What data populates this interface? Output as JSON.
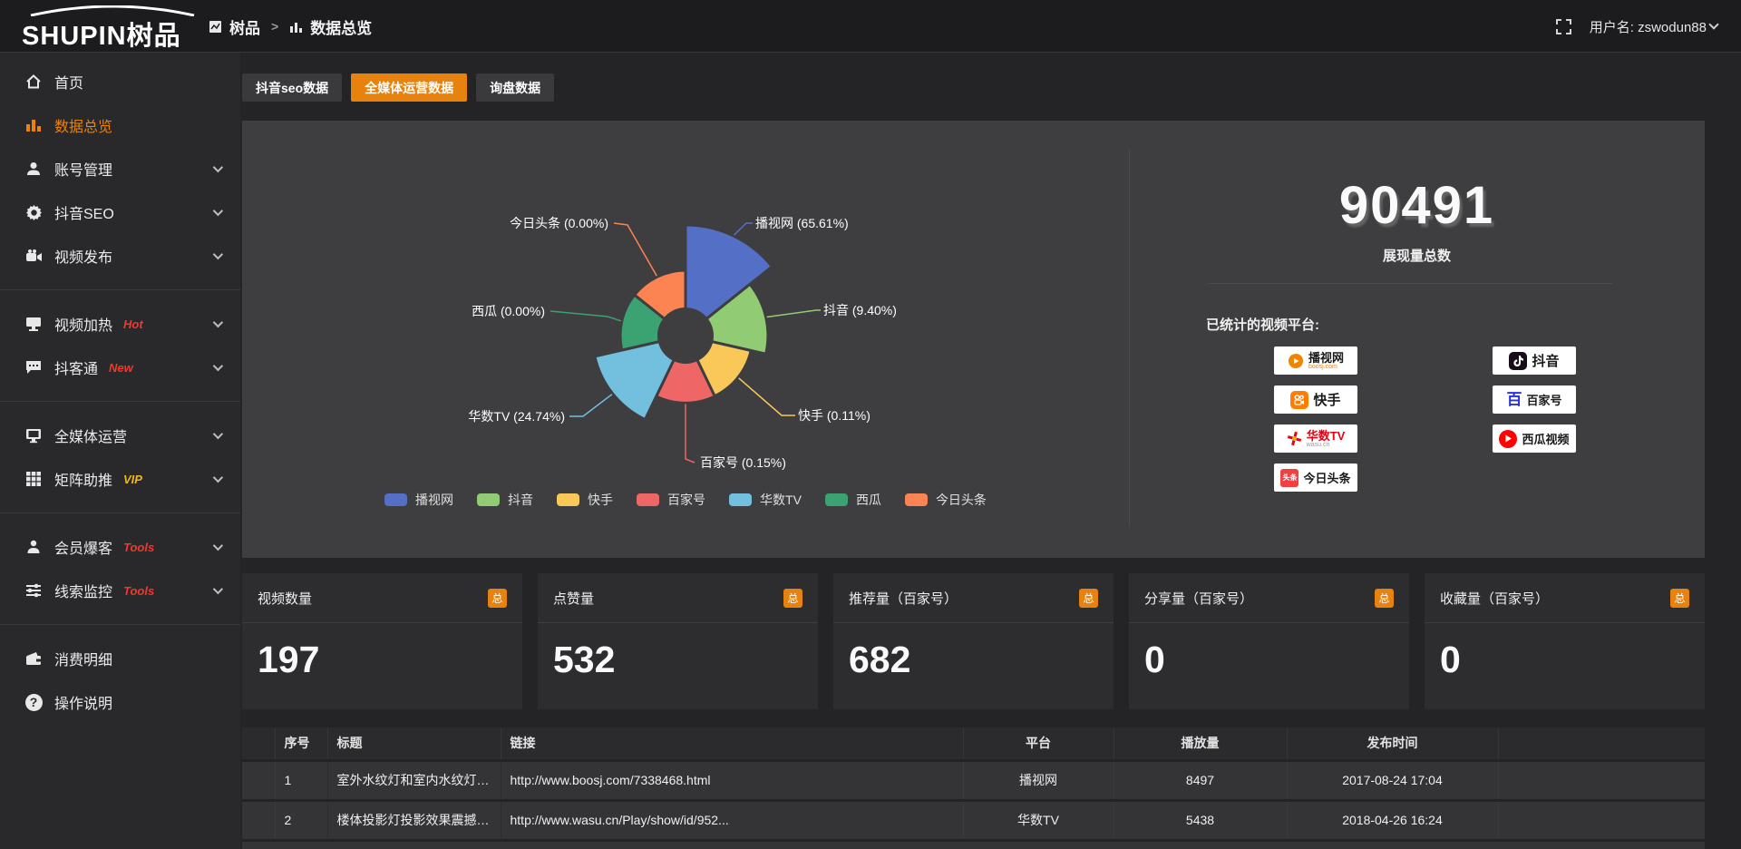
{
  "colors": {
    "accent_orange": "#e8820e",
    "link_orange": "#e8830c",
    "badge_red": "#f0392f",
    "badge_gold": "#f0b41e",
    "card_bg": "#3e3e40"
  },
  "topbar": {
    "logo_en": "SHUPIN",
    "logo_cn": "树品",
    "breadcrumb_root": "树品",
    "breadcrumb_sep": ">",
    "breadcrumb_current": "数据总览",
    "username": "用户名: zswodun88"
  },
  "sidebar": {
    "items": [
      {
        "label": "首页"
      },
      {
        "label": "数据总览"
      },
      {
        "label": "账号管理"
      },
      {
        "label": "抖音SEO"
      },
      {
        "label": "视频发布"
      },
      {
        "label": "视频加热",
        "badge": "Hot"
      },
      {
        "label": "抖客通",
        "badge": "New"
      },
      {
        "label": "全媒体运营"
      },
      {
        "label": "矩阵助推",
        "badge": "VIP"
      },
      {
        "label": "会员爆客",
        "badge": "Tools"
      },
      {
        "label": "线索监控",
        "badge": "Tools"
      },
      {
        "label": "消费明细"
      },
      {
        "label": "操作说明"
      }
    ]
  },
  "tabs": [
    {
      "label": "抖音seo数据"
    },
    {
      "label": "全媒体运营数据"
    },
    {
      "label": "询盘数据"
    }
  ],
  "chart_data": {
    "type": "pie",
    "subtype": "nightingale-rose",
    "labels": [
      "播视网",
      "抖音",
      "快手",
      "百家号",
      "华数TV",
      "西瓜",
      "今日头条"
    ],
    "values_pct": [
      65.61,
      9.4,
      0.11,
      0.15,
      24.74,
      0.0,
      0.0
    ],
    "colors": [
      "#5470c6",
      "#91cc75",
      "#fac858",
      "#ee6666",
      "#73c0de",
      "#3ba272",
      "#fc8452"
    ],
    "label_format": "{name} ({value}%)",
    "legend_position": "bottom",
    "grid": false
  },
  "overview": {
    "total": "90491",
    "total_label": "展现量总数",
    "platforms_label": "已统计的视频平台:",
    "platforms": [
      {
        "name": "播视网",
        "sub": "boosj.com"
      },
      {
        "name": "快手",
        "sub": ""
      },
      {
        "name": "华数TV",
        "sub": "wasu.cn"
      },
      {
        "name": "今日头条",
        "sub": ""
      },
      {
        "name": "抖音",
        "sub": ""
      },
      {
        "name": "百家号",
        "sub": ""
      },
      {
        "name": "西瓜视频",
        "sub": ""
      }
    ]
  },
  "stat_cards": [
    {
      "label": "视频数量",
      "badge": "总",
      "value": "197"
    },
    {
      "label": "点赞量",
      "badge": "总",
      "value": "532"
    },
    {
      "label": "推荐量（百家号）",
      "badge": "总",
      "value": "682"
    },
    {
      "label": "分享量（百家号）",
      "badge": "总",
      "value": "0"
    },
    {
      "label": "收藏量（百家号）",
      "badge": "总",
      "value": "0"
    }
  ],
  "table": {
    "headers": [
      "序号",
      "标题",
      "链接",
      "平台",
      "播放量",
      "发布时间"
    ],
    "rows": [
      [
        "1",
        "室外水纹灯和室内水纹灯的区别和简介",
        "http://www.boosj.com/7338468.html",
        "播视网",
        "8497",
        "2017-08-24 17:04"
      ],
      [
        "2",
        "楼体投影灯投影效果震撼上市",
        "http://www.wasu.cn/Play/show/id/952...",
        "华数TV",
        "5438",
        "2018-04-26 16:24"
      ]
    ]
  }
}
